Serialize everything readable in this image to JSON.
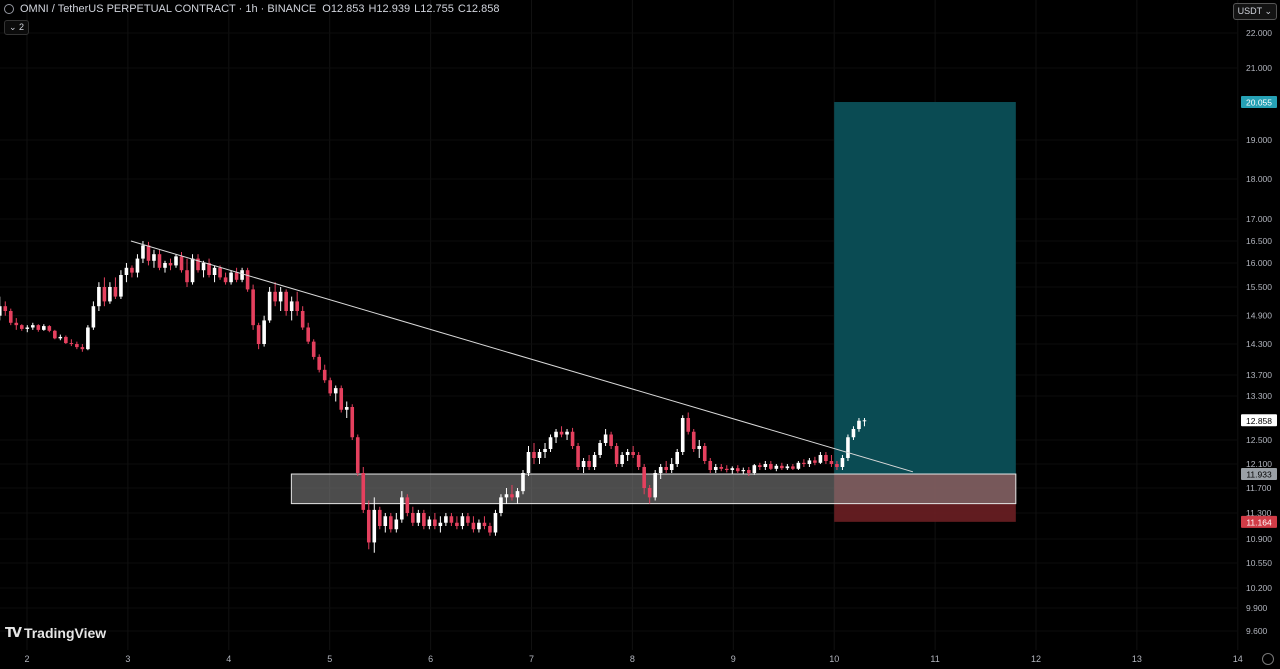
{
  "header": {
    "symbol": "OMNI / TetherUS PERPETUAL CONTRACT · 1h · BINANCE",
    "open_label": "O",
    "open": "12.853",
    "high_label": "H",
    "high": "12.939",
    "low_label": "L",
    "low": "12.755",
    "close_label": "C",
    "close": "12.858",
    "indicators_toggle": "⌄ 2"
  },
  "currency": "USDT ⌄",
  "logo_text": "TradingView",
  "colors": {
    "up": "#ffffff",
    "down": "#e5405e",
    "target": "#0b4f57",
    "stop": "#6b1f24",
    "zone": "#8a8a8a",
    "tag_target": "#26a1b5",
    "tag_stop": "#d13c47",
    "tag_last": "#ffffff"
  },
  "chart_data": {
    "type": "candlestick",
    "y_axis_ticks": [
      22.0,
      21.0,
      19.0,
      18.0,
      17.0,
      16.5,
      16.0,
      15.5,
      14.9,
      14.3,
      13.7,
      13.3,
      12.5,
      12.1,
      11.7,
      11.3,
      10.9,
      10.55,
      10.2,
      9.9,
      9.6
    ],
    "y_axis_labels": [
      "22.000",
      "21.000",
      "19.000",
      "18.000",
      "17.000",
      "16.500",
      "16.000",
      "15.500",
      "14.900",
      "14.300",
      "13.700",
      "13.300",
      "12.500",
      "12.100",
      "11.700",
      "11.300",
      "10.900",
      "10.550",
      "10.200",
      "9.900",
      "9.600"
    ],
    "x_axis_ticks": [
      2,
      3,
      4,
      5,
      6,
      7,
      8,
      9,
      10,
      11,
      12,
      13,
      14
    ],
    "x_axis_labels": [
      "2",
      "3",
      "4",
      "5",
      "6",
      "7",
      "8",
      "9",
      "10",
      "11",
      "12",
      "13",
      "14"
    ],
    "price_tags": {
      "target": {
        "value": 20.055,
        "label": "20.055"
      },
      "last": {
        "value": 12.858,
        "label": "12.858"
      },
      "entry": {
        "value": 11.933,
        "label": "11.933"
      },
      "stop": {
        "value": 11.164,
        "label": "11.164"
      }
    },
    "position": {
      "type": "long",
      "start_x": 10.0,
      "end_x": 11.8,
      "entry": 11.933,
      "target": 20.055,
      "stop": 11.164
    },
    "support_zone": {
      "start_x": 4.62,
      "end_x": 11.8,
      "top": 11.933,
      "bottom": 11.45
    },
    "trendline": {
      "x1": 3.03,
      "y1": 16.5,
      "x2": 10.78,
      "y2": 11.97
    },
    "candles": [
      [
        14.9,
        15.3,
        14.8,
        15.1
      ],
      [
        15.1,
        15.2,
        14.9,
        15.0
      ],
      [
        15.0,
        15.05,
        14.7,
        14.75
      ],
      [
        14.75,
        14.85,
        14.6,
        14.7
      ],
      [
        14.7,
        14.72,
        14.58,
        14.62
      ],
      [
        14.62,
        14.7,
        14.55,
        14.65
      ],
      [
        14.65,
        14.75,
        14.6,
        14.7
      ],
      [
        14.7,
        14.72,
        14.56,
        14.6
      ],
      [
        14.6,
        14.72,
        14.58,
        14.68
      ],
      [
        14.68,
        14.7,
        14.55,
        14.58
      ],
      [
        14.58,
        14.6,
        14.4,
        14.42
      ],
      [
        14.42,
        14.5,
        14.38,
        14.45
      ],
      [
        14.45,
        14.48,
        14.3,
        14.32
      ],
      [
        14.32,
        14.4,
        14.26,
        14.3
      ],
      [
        14.3,
        14.35,
        14.2,
        14.24
      ],
      [
        14.24,
        14.3,
        14.15,
        14.2
      ],
      [
        14.2,
        14.7,
        14.18,
        14.65
      ],
      [
        14.65,
        15.2,
        14.6,
        15.1
      ],
      [
        15.1,
        15.6,
        15.0,
        15.5
      ],
      [
        15.5,
        15.7,
        15.1,
        15.2
      ],
      [
        15.2,
        15.6,
        15.15,
        15.5
      ],
      [
        15.5,
        15.7,
        15.25,
        15.3
      ],
      [
        15.3,
        15.85,
        15.25,
        15.75
      ],
      [
        15.75,
        16.0,
        15.6,
        15.9
      ],
      [
        15.9,
        15.95,
        15.7,
        15.8
      ],
      [
        15.8,
        16.2,
        15.7,
        16.1
      ],
      [
        16.1,
        16.5,
        16.0,
        16.4
      ],
      [
        16.4,
        16.48,
        15.95,
        16.05
      ],
      [
        16.05,
        16.3,
        15.9,
        16.2
      ],
      [
        16.2,
        16.3,
        15.85,
        15.9
      ],
      [
        15.9,
        16.05,
        15.8,
        16.0
      ],
      [
        16.0,
        16.1,
        15.85,
        15.95
      ],
      [
        15.95,
        16.2,
        15.9,
        16.15
      ],
      [
        16.15,
        16.25,
        15.8,
        15.85
      ],
      [
        15.85,
        16.1,
        15.5,
        15.6
      ],
      [
        15.6,
        16.2,
        15.55,
        16.1
      ],
      [
        16.1,
        16.2,
        15.8,
        15.85
      ],
      [
        15.85,
        16.05,
        15.7,
        16.0
      ],
      [
        16.0,
        16.1,
        15.7,
        15.75
      ],
      [
        15.75,
        15.95,
        15.6,
        15.9
      ],
      [
        15.9,
        15.95,
        15.65,
        15.7
      ],
      [
        15.7,
        15.8,
        15.55,
        15.6
      ],
      [
        15.6,
        15.85,
        15.55,
        15.8
      ],
      [
        15.8,
        15.9,
        15.6,
        15.65
      ],
      [
        15.65,
        15.9,
        15.6,
        15.85
      ],
      [
        15.85,
        15.9,
        15.4,
        15.45
      ],
      [
        15.45,
        15.55,
        14.6,
        14.7
      ],
      [
        14.7,
        14.75,
        14.2,
        14.3
      ],
      [
        14.3,
        14.9,
        14.25,
        14.8
      ],
      [
        14.8,
        15.5,
        14.75,
        15.4
      ],
      [
        15.4,
        15.6,
        15.1,
        15.2
      ],
      [
        15.2,
        15.5,
        15.0,
        15.4
      ],
      [
        15.4,
        15.45,
        14.9,
        15.0
      ],
      [
        15.0,
        15.3,
        14.8,
        15.2
      ],
      [
        15.2,
        15.4,
        14.9,
        15.0
      ],
      [
        15.0,
        15.1,
        14.6,
        14.65
      ],
      [
        14.65,
        14.75,
        14.3,
        14.35
      ],
      [
        14.35,
        14.4,
        14.0,
        14.05
      ],
      [
        14.05,
        14.1,
        13.75,
        13.8
      ],
      [
        13.8,
        13.9,
        13.55,
        13.6
      ],
      [
        13.6,
        13.65,
        13.3,
        13.35
      ],
      [
        13.35,
        13.5,
        13.2,
        13.45
      ],
      [
        13.45,
        13.5,
        13.0,
        13.05
      ],
      [
        13.05,
        13.2,
        12.9,
        13.1
      ],
      [
        13.1,
        13.15,
        12.5,
        12.55
      ],
      [
        12.55,
        12.6,
        11.9,
        11.95
      ],
      [
        11.95,
        12.05,
        11.3,
        11.35
      ],
      [
        11.35,
        11.5,
        10.75,
        10.85
      ],
      [
        10.85,
        11.55,
        10.7,
        11.35
      ],
      [
        11.35,
        11.4,
        11.05,
        11.1
      ],
      [
        11.1,
        11.3,
        11.0,
        11.25
      ],
      [
        11.25,
        11.3,
        11.0,
        11.05
      ],
      [
        11.05,
        11.3,
        11.0,
        11.2
      ],
      [
        11.2,
        11.65,
        11.15,
        11.55
      ],
      [
        11.55,
        11.6,
        11.25,
        11.3
      ],
      [
        11.3,
        11.4,
        11.1,
        11.15
      ],
      [
        11.15,
        11.35,
        11.1,
        11.3
      ],
      [
        11.3,
        11.35,
        11.05,
        11.1
      ],
      [
        11.1,
        11.25,
        11.05,
        11.2
      ],
      [
        11.2,
        11.3,
        11.05,
        11.1
      ],
      [
        11.1,
        11.25,
        11.0,
        11.15
      ],
      [
        11.15,
        11.3,
        11.1,
        11.25
      ],
      [
        11.25,
        11.3,
        11.1,
        11.15
      ],
      [
        11.15,
        11.25,
        11.05,
        11.1
      ],
      [
        11.1,
        11.3,
        11.05,
        11.25
      ],
      [
        11.25,
        11.3,
        11.1,
        11.15
      ],
      [
        11.15,
        11.25,
        11.0,
        11.05
      ],
      [
        11.05,
        11.2,
        11.0,
        11.15
      ],
      [
        11.15,
        11.25,
        11.05,
        11.1
      ],
      [
        11.1,
        11.15,
        10.95,
        11.0
      ],
      [
        11.0,
        11.35,
        10.95,
        11.3
      ],
      [
        11.3,
        11.6,
        11.25,
        11.55
      ],
      [
        11.55,
        11.7,
        11.45,
        11.6
      ],
      [
        11.6,
        11.75,
        11.5,
        11.55
      ],
      [
        11.55,
        11.7,
        11.45,
        11.65
      ],
      [
        11.65,
        12.0,
        11.6,
        11.95
      ],
      [
        11.95,
        12.4,
        11.9,
        12.3
      ],
      [
        12.3,
        12.45,
        12.1,
        12.2
      ],
      [
        12.2,
        12.35,
        12.1,
        12.3
      ],
      [
        12.3,
        12.45,
        12.2,
        12.35
      ],
      [
        12.35,
        12.6,
        12.3,
        12.55
      ],
      [
        12.55,
        12.7,
        12.45,
        12.65
      ],
      [
        12.65,
        12.75,
        12.55,
        12.6
      ],
      [
        12.6,
        12.7,
        12.5,
        12.65
      ],
      [
        12.65,
        12.72,
        12.35,
        12.4
      ],
      [
        12.4,
        12.45,
        12.0,
        12.05
      ],
      [
        12.05,
        12.2,
        11.95,
        12.15
      ],
      [
        12.15,
        12.25,
        12.0,
        12.05
      ],
      [
        12.05,
        12.3,
        12.0,
        12.25
      ],
      [
        12.25,
        12.5,
        12.2,
        12.45
      ],
      [
        12.45,
        12.7,
        12.4,
        12.6
      ],
      [
        12.6,
        12.65,
        12.35,
        12.4
      ],
      [
        12.4,
        12.45,
        12.05,
        12.1
      ],
      [
        12.1,
        12.3,
        12.05,
        12.25
      ],
      [
        12.25,
        12.35,
        12.15,
        12.3
      ],
      [
        12.3,
        12.4,
        12.2,
        12.25
      ],
      [
        12.25,
        12.3,
        12.0,
        12.05
      ],
      [
        12.05,
        12.1,
        11.6,
        11.7
      ],
      [
        11.7,
        11.75,
        11.45,
        11.55
      ],
      [
        11.55,
        12.0,
        11.5,
        11.95
      ],
      [
        11.95,
        12.1,
        11.85,
        12.05
      ],
      [
        12.05,
        12.15,
        11.95,
        12.0
      ],
      [
        12.0,
        12.2,
        11.95,
        12.1
      ],
      [
        12.1,
        12.35,
        12.05,
        12.3
      ],
      [
        12.3,
        12.95,
        12.25,
        12.9
      ],
      [
        12.9,
        13.0,
        12.6,
        12.65
      ],
      [
        12.65,
        12.7,
        12.3,
        12.35
      ],
      [
        12.35,
        12.5,
        12.2,
        12.4
      ],
      [
        12.4,
        12.45,
        12.1,
        12.15
      ],
      [
        12.15,
        12.2,
        11.95,
        12.0
      ],
      [
        12.0,
        12.1,
        11.95,
        12.05
      ],
      [
        12.05,
        12.1,
        11.98,
        12.02
      ],
      [
        12.02,
        12.08,
        11.96,
        12.0
      ],
      [
        12.0,
        12.06,
        11.94,
        12.03
      ],
      [
        12.03,
        12.08,
        11.95,
        11.98
      ],
      [
        11.98,
        12.04,
        11.93,
        12.0
      ],
      [
        12.0,
        12.05,
        11.9,
        11.95
      ],
      [
        11.95,
        12.1,
        11.92,
        12.08
      ],
      [
        12.08,
        12.12,
        12.0,
        12.05
      ],
      [
        12.05,
        12.15,
        12.0,
        12.1
      ],
      [
        12.1,
        12.15,
        12.0,
        12.02
      ],
      [
        12.02,
        12.1,
        11.98,
        12.07
      ],
      [
        12.07,
        12.12,
        12.0,
        12.03
      ],
      [
        12.03,
        12.1,
        12.0,
        12.06
      ],
      [
        12.06,
        12.1,
        12.0,
        12.02
      ],
      [
        12.02,
        12.15,
        12.0,
        12.12
      ],
      [
        12.12,
        12.18,
        12.05,
        12.1
      ],
      [
        12.1,
        12.2,
        12.05,
        12.16
      ],
      [
        12.16,
        12.22,
        12.08,
        12.12
      ],
      [
        12.12,
        12.3,
        12.1,
        12.25
      ],
      [
        12.25,
        12.3,
        12.1,
        12.15
      ],
      [
        12.15,
        12.25,
        12.05,
        12.1
      ],
      [
        12.1,
        12.15,
        12.0,
        12.05
      ],
      [
        12.05,
        12.25,
        12.0,
        12.2
      ],
      [
        12.2,
        12.6,
        12.15,
        12.55
      ],
      [
        12.55,
        12.75,
        12.5,
        12.7
      ],
      [
        12.7,
        12.9,
        12.65,
        12.85
      ],
      [
        12.85,
        12.9,
        12.75,
        12.858
      ]
    ]
  }
}
